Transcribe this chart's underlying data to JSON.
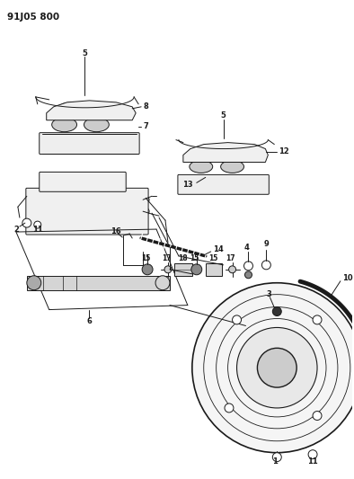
{
  "title": "91J05 800",
  "bg_color": "#ffffff",
  "lc": "#1a1a1a",
  "fig_width": 3.94,
  "fig_height": 5.33,
  "dpi": 100
}
